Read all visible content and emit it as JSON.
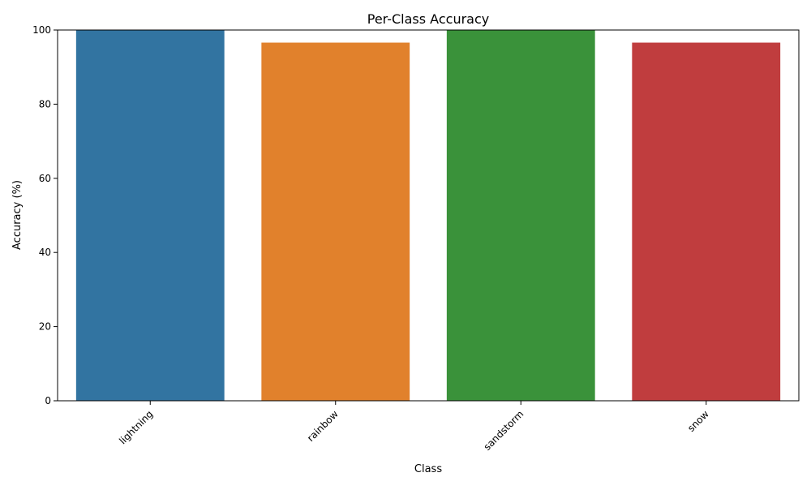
{
  "chart_data": {
    "type": "bar",
    "title": "Per-Class Accuracy",
    "xlabel": "Class",
    "ylabel": "Accuracy (%)",
    "categories": [
      "lightning",
      "rainbow",
      "sandstorm",
      "snow"
    ],
    "values": [
      100,
      96.6,
      100,
      96.6
    ],
    "colors": [
      "#3274a1",
      "#e1812c",
      "#3a923a",
      "#c03d3e"
    ],
    "ylim": [
      0,
      100
    ],
    "yticks": [
      0,
      20,
      40,
      60,
      80,
      100
    ],
    "grid": false,
    "legend": "none"
  }
}
